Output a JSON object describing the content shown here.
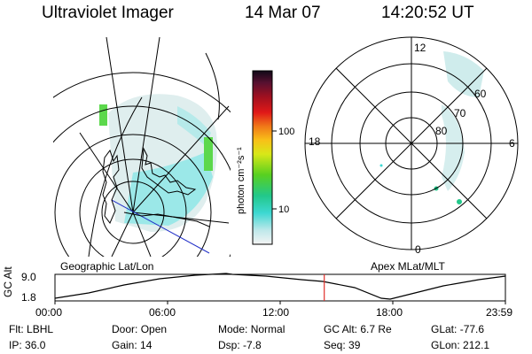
{
  "header": {
    "instrument": "Ultraviolet Imager",
    "date": "14 Mar 07",
    "time": "14:20:52 UT"
  },
  "colorbar": {
    "unit_label": "photon cm⁻²s⁻¹",
    "ticks": [
      "100",
      "10"
    ]
  },
  "polar_plot": {
    "mlt_labels": {
      "top": "12",
      "left": "18",
      "right": "6",
      "bottom": "0"
    },
    "lat_labels": [
      "60",
      "70",
      "80"
    ]
  },
  "panel_labels": {
    "left": "Geographic Lat/Lon",
    "right": "Apex MLat/MLT"
  },
  "altitude_chart": {
    "ylabel": "GC Alt",
    "yticks": [
      "9.0",
      "1.8"
    ],
    "xticks": [
      "00:00",
      "06:00",
      "12:00",
      "18:00",
      "23:59"
    ],
    "current_time_hours": 14.35,
    "marker_color": "#e0302a"
  },
  "info": {
    "row1": [
      {
        "label": "Flt:",
        "value": "LBHL"
      },
      {
        "label": "Door:",
        "value": "Open"
      },
      {
        "label": "Mode:",
        "value": "Normal"
      },
      {
        "label": "GC Alt:",
        "value": "6.7 Re"
      },
      {
        "label": "GLat:",
        "value": "-77.6"
      }
    ],
    "row2": [
      {
        "label": "IP:",
        "value": "36.0"
      },
      {
        "label": "Gain:",
        "value": "14"
      },
      {
        "label": "Dsp:",
        "value": "-7.8"
      },
      {
        "label": "Seq:",
        "value": "39"
      },
      {
        "label": "GLon:",
        "value": "212.1"
      }
    ]
  }
}
